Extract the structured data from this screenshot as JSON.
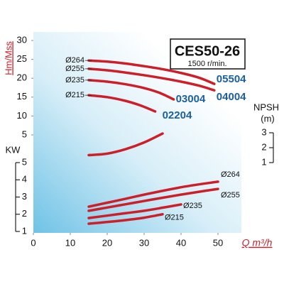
{
  "chart_data": [
    {
      "type": "line",
      "title": "CES50-26",
      "subtitle": "1500 r/min.",
      "y_label": "Hm/Mss",
      "xlim": [
        0,
        55
      ],
      "ylim": [
        5,
        30
      ],
      "yticks": [
        5,
        10,
        15,
        20,
        25,
        30
      ],
      "series": [
        {
          "name": "Ø264",
          "label": "05504",
          "color": "#cc1f2a",
          "x": [
            15,
            20,
            25,
            30,
            35,
            40,
            45,
            49
          ],
          "values": [
            24.7,
            24.4,
            23.9,
            23.2,
            22.4,
            21.4,
            20.1,
            18.5
          ]
        },
        {
          "name": "Ø255",
          "label": "04004",
          "color": "#cc1f2a",
          "x": [
            15,
            20,
            25,
            30,
            35,
            40,
            45,
            49
          ],
          "values": [
            22.5,
            22.1,
            21.5,
            20.8,
            20.0,
            19.1,
            18.0,
            16.8
          ]
        },
        {
          "name": "Ø235",
          "label": "03004",
          "color": "#cc1f2a",
          "x": [
            15,
            20,
            25,
            30,
            34,
            38
          ],
          "values": [
            19.5,
            19.1,
            18.4,
            17.4,
            16.2,
            14.4
          ]
        },
        {
          "name": "Ø215",
          "label": "02204",
          "color": "#cc1f2a",
          "x": [
            15,
            20,
            25,
            29,
            33
          ],
          "values": [
            15.5,
            15.0,
            14.0,
            12.8,
            11.2
          ]
        }
      ]
    },
    {
      "type": "line",
      "y_label": "NPSH",
      "y_unit": "(m)",
      "xlim": [
        0,
        55
      ],
      "ylim": [
        1,
        3
      ],
      "yticks": [
        1,
        2,
        3
      ],
      "series": [
        {
          "color": "#cc1f2a",
          "x": [
            15,
            20,
            25,
            30,
            35
          ],
          "values": [
            1.5,
            1.6,
            1.9,
            2.35,
            2.95
          ]
        }
      ]
    },
    {
      "type": "line",
      "y_label": "KW",
      "x_label": "Q m³/h",
      "xlim": [
        0,
        55
      ],
      "xticks": [
        0,
        10,
        20,
        30,
        40,
        50
      ],
      "ylim": [
        1,
        5
      ],
      "yticks": [
        1,
        2,
        3,
        4,
        5
      ],
      "series": [
        {
          "name": "Ø264",
          "color": "#cc1f2a",
          "x": [
            15,
            20,
            25,
            30,
            35,
            40,
            45,
            50
          ],
          "values": [
            2.44,
            2.67,
            2.9,
            3.14,
            3.36,
            3.57,
            3.74,
            3.89
          ]
        },
        {
          "name": "Ø255",
          "color": "#cc1f2a",
          "x": [
            15,
            20,
            25,
            30,
            35,
            40,
            45,
            50
          ],
          "values": [
            2.2,
            2.39,
            2.58,
            2.77,
            2.96,
            3.14,
            3.31,
            3.47
          ]
        },
        {
          "name": "Ø235",
          "color": "#cc1f2a",
          "x": [
            15,
            20,
            25,
            30,
            35,
            40
          ],
          "values": [
            1.78,
            1.92,
            2.06,
            2.2,
            2.38,
            2.57
          ]
        },
        {
          "name": "Ø215",
          "color": "#cc1f2a",
          "x": [
            15,
            20,
            25,
            30,
            35
          ],
          "values": [
            1.45,
            1.55,
            1.66,
            1.8,
            2.0
          ]
        }
      ]
    }
  ]
}
